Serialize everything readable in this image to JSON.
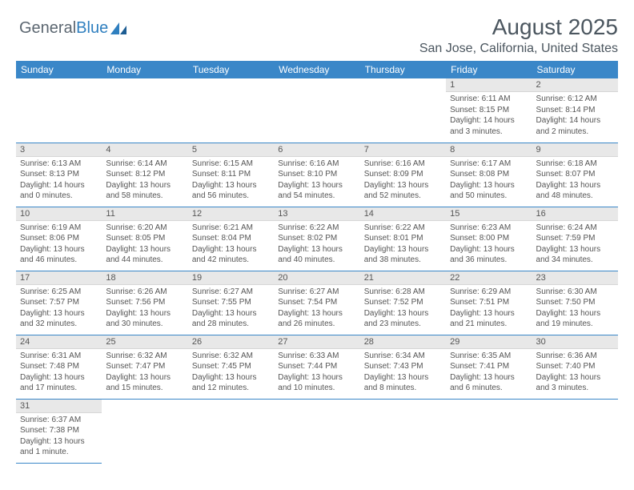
{
  "brand": {
    "part1": "General",
    "part2": "Blue"
  },
  "title": "August 2025",
  "location": "San Jose, California, United States",
  "colors": {
    "header_bg": "#3a87c8",
    "header_text": "#ffffff",
    "daynum_bg": "#e8e8e8",
    "text": "#555555",
    "rule": "#3a87c8"
  },
  "typography": {
    "title_fontsize": 28,
    "location_fontsize": 16,
    "header_fontsize": 12,
    "daynum_fontsize": 11,
    "body_fontsize": 10
  },
  "day_headers": [
    "Sunday",
    "Monday",
    "Tuesday",
    "Wednesday",
    "Thursday",
    "Friday",
    "Saturday"
  ],
  "weeks": [
    [
      null,
      null,
      null,
      null,
      null,
      {
        "n": "1",
        "sunrise": "Sunrise: 6:11 AM",
        "sunset": "Sunset: 8:15 PM",
        "daylight": "Daylight: 14 hours and 3 minutes."
      },
      {
        "n": "2",
        "sunrise": "Sunrise: 6:12 AM",
        "sunset": "Sunset: 8:14 PM",
        "daylight": "Daylight: 14 hours and 2 minutes."
      }
    ],
    [
      {
        "n": "3",
        "sunrise": "Sunrise: 6:13 AM",
        "sunset": "Sunset: 8:13 PM",
        "daylight": "Daylight: 14 hours and 0 minutes."
      },
      {
        "n": "4",
        "sunrise": "Sunrise: 6:14 AM",
        "sunset": "Sunset: 8:12 PM",
        "daylight": "Daylight: 13 hours and 58 minutes."
      },
      {
        "n": "5",
        "sunrise": "Sunrise: 6:15 AM",
        "sunset": "Sunset: 8:11 PM",
        "daylight": "Daylight: 13 hours and 56 minutes."
      },
      {
        "n": "6",
        "sunrise": "Sunrise: 6:16 AM",
        "sunset": "Sunset: 8:10 PM",
        "daylight": "Daylight: 13 hours and 54 minutes."
      },
      {
        "n": "7",
        "sunrise": "Sunrise: 6:16 AM",
        "sunset": "Sunset: 8:09 PM",
        "daylight": "Daylight: 13 hours and 52 minutes."
      },
      {
        "n": "8",
        "sunrise": "Sunrise: 6:17 AM",
        "sunset": "Sunset: 8:08 PM",
        "daylight": "Daylight: 13 hours and 50 minutes."
      },
      {
        "n": "9",
        "sunrise": "Sunrise: 6:18 AM",
        "sunset": "Sunset: 8:07 PM",
        "daylight": "Daylight: 13 hours and 48 minutes."
      }
    ],
    [
      {
        "n": "10",
        "sunrise": "Sunrise: 6:19 AM",
        "sunset": "Sunset: 8:06 PM",
        "daylight": "Daylight: 13 hours and 46 minutes."
      },
      {
        "n": "11",
        "sunrise": "Sunrise: 6:20 AM",
        "sunset": "Sunset: 8:05 PM",
        "daylight": "Daylight: 13 hours and 44 minutes."
      },
      {
        "n": "12",
        "sunrise": "Sunrise: 6:21 AM",
        "sunset": "Sunset: 8:04 PM",
        "daylight": "Daylight: 13 hours and 42 minutes."
      },
      {
        "n": "13",
        "sunrise": "Sunrise: 6:22 AM",
        "sunset": "Sunset: 8:02 PM",
        "daylight": "Daylight: 13 hours and 40 minutes."
      },
      {
        "n": "14",
        "sunrise": "Sunrise: 6:22 AM",
        "sunset": "Sunset: 8:01 PM",
        "daylight": "Daylight: 13 hours and 38 minutes."
      },
      {
        "n": "15",
        "sunrise": "Sunrise: 6:23 AM",
        "sunset": "Sunset: 8:00 PM",
        "daylight": "Daylight: 13 hours and 36 minutes."
      },
      {
        "n": "16",
        "sunrise": "Sunrise: 6:24 AM",
        "sunset": "Sunset: 7:59 PM",
        "daylight": "Daylight: 13 hours and 34 minutes."
      }
    ],
    [
      {
        "n": "17",
        "sunrise": "Sunrise: 6:25 AM",
        "sunset": "Sunset: 7:57 PM",
        "daylight": "Daylight: 13 hours and 32 minutes."
      },
      {
        "n": "18",
        "sunrise": "Sunrise: 6:26 AM",
        "sunset": "Sunset: 7:56 PM",
        "daylight": "Daylight: 13 hours and 30 minutes."
      },
      {
        "n": "19",
        "sunrise": "Sunrise: 6:27 AM",
        "sunset": "Sunset: 7:55 PM",
        "daylight": "Daylight: 13 hours and 28 minutes."
      },
      {
        "n": "20",
        "sunrise": "Sunrise: 6:27 AM",
        "sunset": "Sunset: 7:54 PM",
        "daylight": "Daylight: 13 hours and 26 minutes."
      },
      {
        "n": "21",
        "sunrise": "Sunrise: 6:28 AM",
        "sunset": "Sunset: 7:52 PM",
        "daylight": "Daylight: 13 hours and 23 minutes."
      },
      {
        "n": "22",
        "sunrise": "Sunrise: 6:29 AM",
        "sunset": "Sunset: 7:51 PM",
        "daylight": "Daylight: 13 hours and 21 minutes."
      },
      {
        "n": "23",
        "sunrise": "Sunrise: 6:30 AM",
        "sunset": "Sunset: 7:50 PM",
        "daylight": "Daylight: 13 hours and 19 minutes."
      }
    ],
    [
      {
        "n": "24",
        "sunrise": "Sunrise: 6:31 AM",
        "sunset": "Sunset: 7:48 PM",
        "daylight": "Daylight: 13 hours and 17 minutes."
      },
      {
        "n": "25",
        "sunrise": "Sunrise: 6:32 AM",
        "sunset": "Sunset: 7:47 PM",
        "daylight": "Daylight: 13 hours and 15 minutes."
      },
      {
        "n": "26",
        "sunrise": "Sunrise: 6:32 AM",
        "sunset": "Sunset: 7:45 PM",
        "daylight": "Daylight: 13 hours and 12 minutes."
      },
      {
        "n": "27",
        "sunrise": "Sunrise: 6:33 AM",
        "sunset": "Sunset: 7:44 PM",
        "daylight": "Daylight: 13 hours and 10 minutes."
      },
      {
        "n": "28",
        "sunrise": "Sunrise: 6:34 AM",
        "sunset": "Sunset: 7:43 PM",
        "daylight": "Daylight: 13 hours and 8 minutes."
      },
      {
        "n": "29",
        "sunrise": "Sunrise: 6:35 AM",
        "sunset": "Sunset: 7:41 PM",
        "daylight": "Daylight: 13 hours and 6 minutes."
      },
      {
        "n": "30",
        "sunrise": "Sunrise: 6:36 AM",
        "sunset": "Sunset: 7:40 PM",
        "daylight": "Daylight: 13 hours and 3 minutes."
      }
    ],
    [
      {
        "n": "31",
        "sunrise": "Sunrise: 6:37 AM",
        "sunset": "Sunset: 7:38 PM",
        "daylight": "Daylight: 13 hours and 1 minute."
      },
      null,
      null,
      null,
      null,
      null,
      null
    ]
  ]
}
